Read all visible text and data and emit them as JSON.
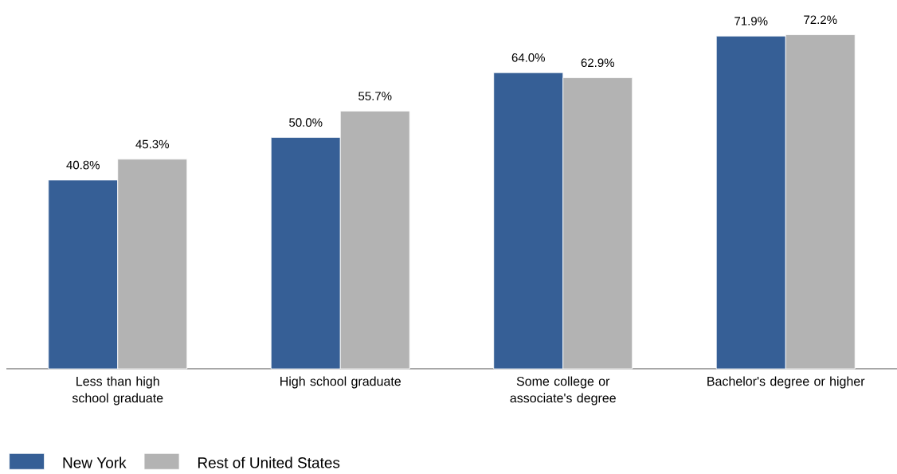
{
  "chart_data": {
    "type": "bar",
    "categories": [
      "Less than high school graduate",
      "High school graduate",
      "Some college or associate's degree",
      "Bachelor's degree or higher"
    ],
    "series": [
      {
        "name": "New York",
        "color": "#365f96",
        "values": [
          40.8,
          50.0,
          64.0,
          71.9
        ],
        "value_labels": [
          "40.8%",
          "50.0%",
          "64.0%",
          "71.9%"
        ]
      },
      {
        "name": "Rest of United States",
        "color": "#b3b3b3",
        "values": [
          45.3,
          55.7,
          62.9,
          72.2
        ],
        "value_labels": [
          "45.3%",
          "55.7%",
          "62.9%",
          "72.2%"
        ]
      }
    ],
    "legend": "bottom left"
  }
}
